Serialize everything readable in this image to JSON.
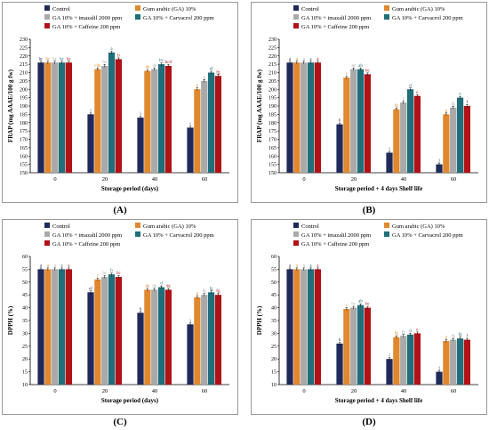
{
  "legend_colors": [
    "#1f2a5a",
    "#e0882f",
    "#a9a9a9",
    "#1f6e7a",
    "#b11217"
  ],
  "chart_data": [
    {
      "panel": "(A)",
      "type": "bar",
      "ylabel": "FRAP (mg AAAE/100 g fw)",
      "xlabel": "Storage period  (days)",
      "categories": [
        "0",
        "20",
        "40",
        "60"
      ],
      "ylim": [
        150,
        230
      ],
      "yticks": [
        150,
        155,
        160,
        165,
        170,
        175,
        180,
        185,
        190,
        195,
        200,
        205,
        210,
        215,
        220,
        225,
        230
      ],
      "series": [
        {
          "name": "Control",
          "values": [
            216,
            185,
            183,
            177
          ],
          "letters": [
            "bc",
            "i",
            "i",
            "i"
          ]
        },
        {
          "name": "Gum arabic (GA) 10%",
          "values": [
            216,
            212,
            211,
            200
          ],
          "letters": [
            "bc",
            "cde",
            "de",
            "h"
          ]
        },
        {
          "name": "GA 10% + imazalil 2000 ppm",
          "values": [
            216,
            214,
            212,
            205
          ],
          "letters": [
            "bc",
            "bc",
            "de",
            "g"
          ]
        },
        {
          "name": "GA 10% + Carvacrol 200 ppm",
          "values": [
            216,
            222,
            215,
            210
          ],
          "letters": [
            "bc",
            "a",
            "bc",
            "ef"
          ]
        },
        {
          "name": "GA 10% + Caffeine 200 ppm",
          "values": [
            216,
            218,
            214,
            208
          ],
          "letters": [
            "bc",
            "b",
            "bcd",
            "fg"
          ]
        }
      ]
    },
    {
      "panel": "(B)",
      "type": "bar",
      "ylabel": "FRAP (mg AAAE/100 g fw)",
      "xlabel": "Storage period + 4 days Shelf life",
      "categories": [
        "0",
        "20",
        "40",
        "60"
      ],
      "ylim": [
        150,
        230
      ],
      "yticks": [
        150,
        155,
        160,
        165,
        170,
        175,
        180,
        185,
        190,
        195,
        200,
        205,
        210,
        215,
        220,
        225,
        230
      ],
      "series": [
        {
          "name": "Control",
          "values": [
            216,
            179,
            162,
            155
          ],
          "letters": [
            "a",
            "h",
            "i",
            "j"
          ]
        },
        {
          "name": "Gum arabic (GA) 10%",
          "values": [
            216,
            207,
            188,
            185
          ],
          "letters": [
            "a",
            "c",
            "fg",
            "g"
          ]
        },
        {
          "name": "GA 10% + imazalil 2000 ppm",
          "values": [
            216,
            212,
            192,
            189
          ],
          "letters": [
            "a",
            "ab",
            "f",
            "fg"
          ]
        },
        {
          "name": "GA 10% + Carvacrol 200 ppm",
          "values": [
            216,
            212,
            200,
            195
          ],
          "letters": [
            "a",
            "ab",
            "d",
            "e"
          ]
        },
        {
          "name": "GA 10% + Caffeine 200 ppm",
          "values": [
            216,
            209,
            196,
            190
          ],
          "letters": [
            "a",
            "bc",
            "e",
            "f"
          ]
        }
      ]
    },
    {
      "panel": "(C)",
      "type": "bar",
      "ylabel": "DPPH (%)",
      "xlabel": "Storage period  (days)",
      "categories": [
        "0",
        "20",
        "40",
        "60"
      ],
      "ylim": [
        10,
        60
      ],
      "yticks": [
        10,
        15,
        20,
        25,
        30,
        35,
        40,
        45,
        50,
        55,
        60
      ],
      "series": [
        {
          "name": "Control",
          "values": [
            55,
            46,
            38,
            33.5
          ],
          "letters": [
            "a",
            "ef",
            "h",
            "i"
          ]
        },
        {
          "name": "Gum arabic (GA) 10%",
          "values": [
            55,
            51,
            47,
            44
          ],
          "letters": [
            "a",
            "c",
            "de",
            "g"
          ]
        },
        {
          "name": "GA 10% + imazalil 2000 ppm",
          "values": [
            55,
            52,
            47,
            45
          ],
          "letters": [
            "a",
            "bc",
            "de",
            "fg"
          ]
        },
        {
          "name": "GA 10% + Carvacrol 200 ppm",
          "values": [
            55,
            53,
            48,
            46
          ],
          "letters": [
            "a",
            "b",
            "d",
            "fg"
          ]
        },
        {
          "name": "GA 10% + Caffeine 200 ppm",
          "values": [
            55,
            52,
            47,
            45
          ],
          "letters": [
            "a",
            "bc",
            "de",
            "fg"
          ]
        }
      ]
    },
    {
      "panel": "(D)",
      "type": "bar",
      "ylabel": "DPPH (%)",
      "xlabel": "Storage period + 4 days Shelf life",
      "categories": [
        "0",
        "20",
        "40",
        "60"
      ],
      "ylim": [
        10,
        60
      ],
      "yticks": [
        10,
        15,
        20,
        25,
        30,
        35,
        40,
        45,
        50,
        55,
        60
      ],
      "series": [
        {
          "name": "Control",
          "values": [
            55,
            26,
            20,
            15
          ],
          "letters": [
            "a",
            "h",
            "i",
            "j"
          ]
        },
        {
          "name": "Gum arabic (GA) 10%",
          "values": [
            55,
            39.5,
            28.5,
            27
          ],
          "letters": [
            "a",
            "c",
            "fg",
            "g"
          ]
        },
        {
          "name": "GA 10% + imazalil 2000 ppm",
          "values": [
            55,
            40,
            29,
            27.5
          ],
          "letters": [
            "a",
            "bc",
            "fg",
            "fg"
          ]
        },
        {
          "name": "GA 10% + Carvacrol 200 ppm",
          "values": [
            55,
            41,
            29.5,
            28
          ],
          "letters": [
            "a",
            "ab",
            "d",
            "fg"
          ]
        },
        {
          "name": "GA 10% + Caffeine 200 ppm",
          "values": [
            55,
            40,
            30,
            27.5
          ],
          "letters": [
            "a",
            "bc",
            "e",
            "f"
          ]
        }
      ]
    }
  ]
}
